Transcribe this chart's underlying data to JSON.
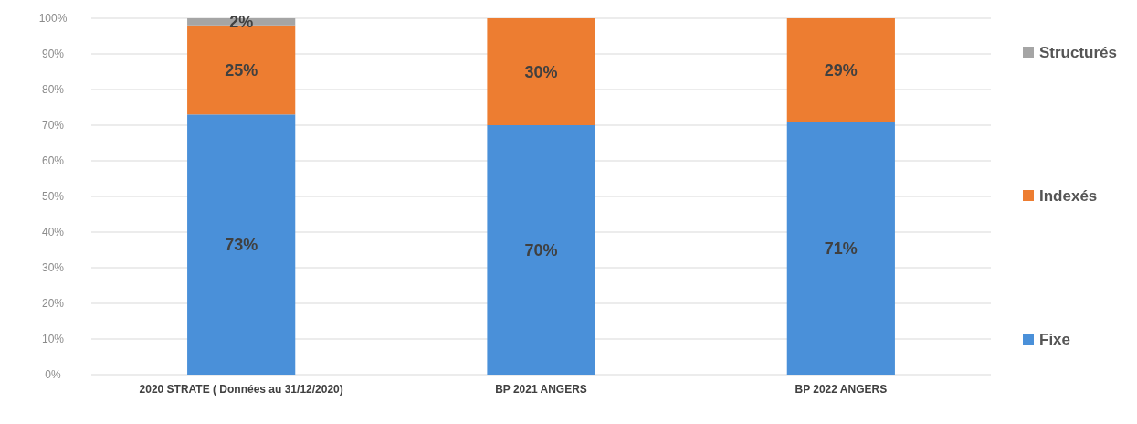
{
  "chart_data": {
    "type": "bar",
    "stacked": true,
    "categories": [
      "2020 STRATE ( Données au 31/12/2020)",
      "BP 2021 ANGERS",
      "BP 2022 ANGERS"
    ],
    "series": [
      {
        "name": "Fixe",
        "color": "#4a90d9",
        "values": [
          73,
          70,
          71
        ],
        "value_labels": [
          "73%",
          "70%",
          "71%"
        ]
      },
      {
        "name": "Indexés",
        "color": "#ed7d31",
        "values": [
          25,
          30,
          29
        ],
        "value_labels": [
          "25%",
          "30%",
          "29%"
        ]
      },
      {
        "name": "Structurés",
        "color": "#a5a5a5",
        "values": [
          2,
          0,
          0
        ],
        "value_labels": [
          "2%",
          null,
          null
        ]
      }
    ],
    "ylim": [
      0,
      100
    ],
    "yticks": [
      {
        "value": 0,
        "label": "0%"
      },
      {
        "value": 10,
        "label": "10%"
      },
      {
        "value": 20,
        "label": "20%"
      },
      {
        "value": 30,
        "label": "30%"
      },
      {
        "value": 40,
        "label": "40%"
      },
      {
        "value": 50,
        "label": "50%"
      },
      {
        "value": 60,
        "label": "60%"
      },
      {
        "value": 70,
        "label": "70%"
      },
      {
        "value": 80,
        "label": "80%"
      },
      {
        "value": 90,
        "label": "90%"
      },
      {
        "value": 100,
        "label": "100%"
      }
    ],
    "grid": "y",
    "legend": "right"
  }
}
